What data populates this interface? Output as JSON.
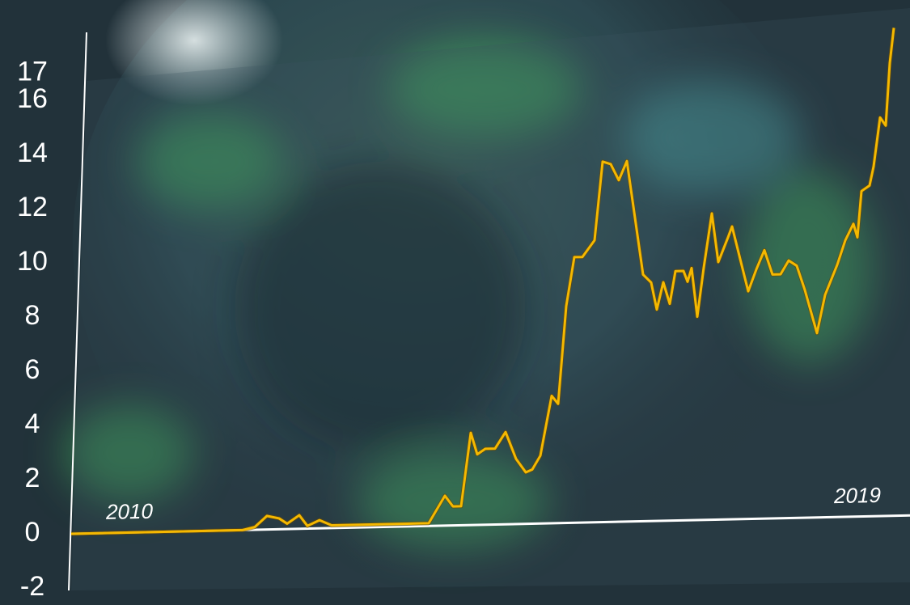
{
  "chart_data": {
    "type": "line",
    "x": [
      2009.28,
      2011.4,
      2011.55,
      2011.7,
      2011.85,
      2011.95,
      2012.1,
      2012.2,
      2012.35,
      2012.5,
      2013.7,
      2013.9,
      2014.0,
      2014.1,
      2014.22,
      2014.3,
      2014.4,
      2014.52,
      2014.65,
      2014.78,
      2014.9,
      2014.98,
      2015.08,
      2015.22,
      2015.3,
      2015.4,
      2015.5,
      2015.6,
      2015.75,
      2015.85,
      2015.95,
      2016.05,
      2016.15,
      2016.35,
      2016.45,
      2016.52,
      2016.6,
      2016.68,
      2016.75,
      2016.85,
      2016.9,
      2016.95,
      2017.02,
      2017.1,
      2017.2,
      2017.28,
      2017.4,
      2017.45,
      2017.55,
      2017.65,
      2017.75,
      2017.85,
      2017.95,
      2018.05,
      2018.15,
      2018.25,
      2018.35,
      2018.5,
      2018.6,
      2018.75,
      2018.85,
      2018.95,
      2019.0,
      2019.05,
      2019.15,
      2019.2,
      2019.28,
      2019.35,
      2019.4,
      2019.45
    ],
    "values": [
      0,
      0,
      0.1,
      0.5,
      0.4,
      0.2,
      0.5,
      0.1,
      0.3,
      0.1,
      0.1,
      1.1,
      0.7,
      0.7,
      3.4,
      2.6,
      2.8,
      2.8,
      3.4,
      2.4,
      1.9,
      2.0,
      2.5,
      4.7,
      4.4,
      8.0,
      9.8,
      9.8,
      10.4,
      13.3,
      13.2,
      12.6,
      13.3,
      9.1,
      8.8,
      7.8,
      8.8,
      8.0,
      9.2,
      9.2,
      8.8,
      9.3,
      7.5,
      9.3,
      11.3,
      9.5,
      10.4,
      10.8,
      9.6,
      8.4,
      9.2,
      9.9,
      9.0,
      9.0,
      9.5,
      9.3,
      8.4,
      6.8,
      8.2,
      9.3,
      10.2,
      10.8,
      10.3,
      12.0,
      12.2,
      12.9,
      14.7,
      14.4,
      16.7,
      18.0
    ],
    "color": "#f5b800",
    "xlim": [
      2009.28,
      2019.65
    ],
    "xticks": [
      2010,
      2019
    ],
    "ylim": [
      -2,
      18.5
    ],
    "yticks": [
      -2,
      0,
      2,
      4,
      6,
      8,
      10,
      12,
      14,
      16,
      17
    ]
  }
}
